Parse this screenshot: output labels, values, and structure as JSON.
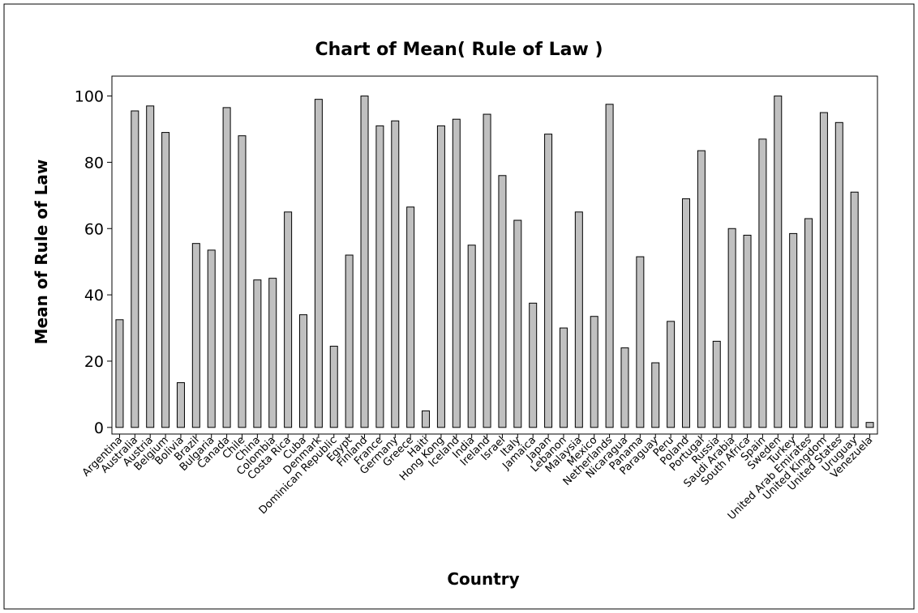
{
  "chart_data": {
    "type": "bar",
    "title": "Chart of Mean( Rule of Law )",
    "x_label": "Country",
    "y_label": "Mean of Rule of Law",
    "categories": [
      "Argentina",
      "Australia",
      "Austria",
      "Belgium",
      "Bolivia",
      "Brazil",
      "Bulgaria",
      "Canada",
      "Chile",
      "China",
      "Colombia",
      "Costa Rica",
      "Cuba",
      "Denmark",
      "Dominican Republic",
      "Egypt",
      "Finland",
      "France",
      "Germany",
      "Greece",
      "Haiti",
      "Hong Kong",
      "Iceland",
      "India",
      "Ireland",
      "Israel",
      "Italy",
      "Jamaica",
      "Japan",
      "Lebanon",
      "Malaysia",
      "Mexico",
      "Netherlands",
      "Nicaragua",
      "Panama",
      "Paraguay",
      "Peru",
      "Poland",
      "Portugal",
      "Russia",
      "Saudi Arabia",
      "South Africa",
      "Spain",
      "Sweden",
      "Turkey",
      "United Arab Emirates",
      "United Kingdom",
      "United States",
      "Uruguay",
      "Venezuela"
    ],
    "values": [
      32.5,
      95.5,
      97,
      89,
      13.5,
      55.5,
      53.5,
      96.5,
      88,
      44.5,
      45,
      65,
      34,
      99,
      24.5,
      52,
      100,
      91,
      92.5,
      66.5,
      5,
      91,
      93,
      55,
      94.5,
      76,
      62.5,
      37.5,
      88.5,
      30,
      65,
      33.5,
      97.5,
      24,
      51.5,
      19.5,
      32,
      69,
      83.5,
      26,
      60,
      58,
      87,
      100,
      58.5,
      63,
      95,
      92,
      71,
      1.5
    ],
    "color": "#c0c0c0",
    "ylim": [
      -2,
      106
    ],
    "yticks": [
      0,
      20,
      40,
      60,
      80,
      100
    ],
    "grid": false
  }
}
